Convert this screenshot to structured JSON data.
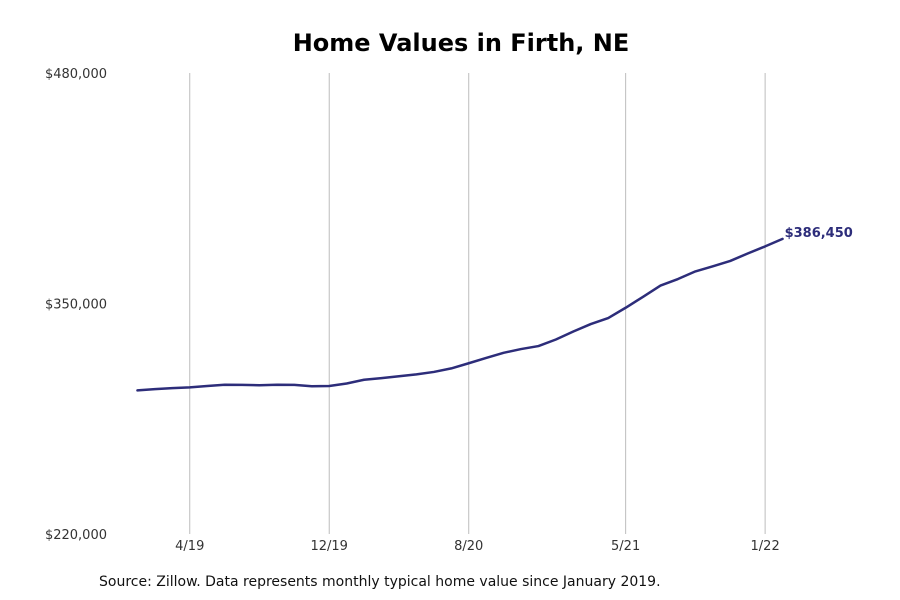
{
  "chart_data": {
    "type": "line",
    "title": "Home Values in Firth, NE",
    "xlabel": "",
    "ylabel": "",
    "ylim": [
      220000,
      480000
    ],
    "y_ticks": [
      "$220,000",
      "$350,000",
      "$480,000"
    ],
    "y_tick_values": [
      220000,
      350000,
      480000
    ],
    "x_ticks": [
      "4/19",
      "12/19",
      "8/20",
      "5/21",
      "1/22"
    ],
    "x_tick_months": [
      "2019-04",
      "2019-12",
      "2020-08",
      "2021-05",
      "2022-01"
    ],
    "grid": "vertical at x ticks",
    "line_color": "#2d2d7a",
    "end_label": "$386,450",
    "x": [
      "2019-01",
      "2019-02",
      "2019-03",
      "2019-04",
      "2019-05",
      "2019-06",
      "2019-07",
      "2019-08",
      "2019-09",
      "2019-10",
      "2019-11",
      "2019-12",
      "2020-01",
      "2020-02",
      "2020-03",
      "2020-04",
      "2020-05",
      "2020-06",
      "2020-07",
      "2020-08",
      "2020-09",
      "2020-10",
      "2020-11",
      "2020-12",
      "2021-01",
      "2021-02",
      "2021-03",
      "2021-04",
      "2021-05",
      "2021-06",
      "2021-07",
      "2021-08",
      "2021-09",
      "2021-10",
      "2021-11",
      "2021-12",
      "2022-01",
      "2022-02"
    ],
    "series": [
      {
        "values": [
          301000,
          301700,
          302300,
          302700,
          303500,
          304200,
          304100,
          303900,
          304200,
          304100,
          303300,
          303500,
          304900,
          307000,
          307900,
          309000,
          310000,
          311400,
          313400,
          316300,
          319300,
          322200,
          324300,
          326000,
          329700,
          334200,
          338400,
          341800,
          347600,
          353800,
          360100,
          363800,
          368100,
          371000,
          374000,
          378200,
          382200,
          386450
        ]
      }
    ]
  },
  "source_note": "Source: Zillow. Data represents monthly typical home value since January 2019."
}
